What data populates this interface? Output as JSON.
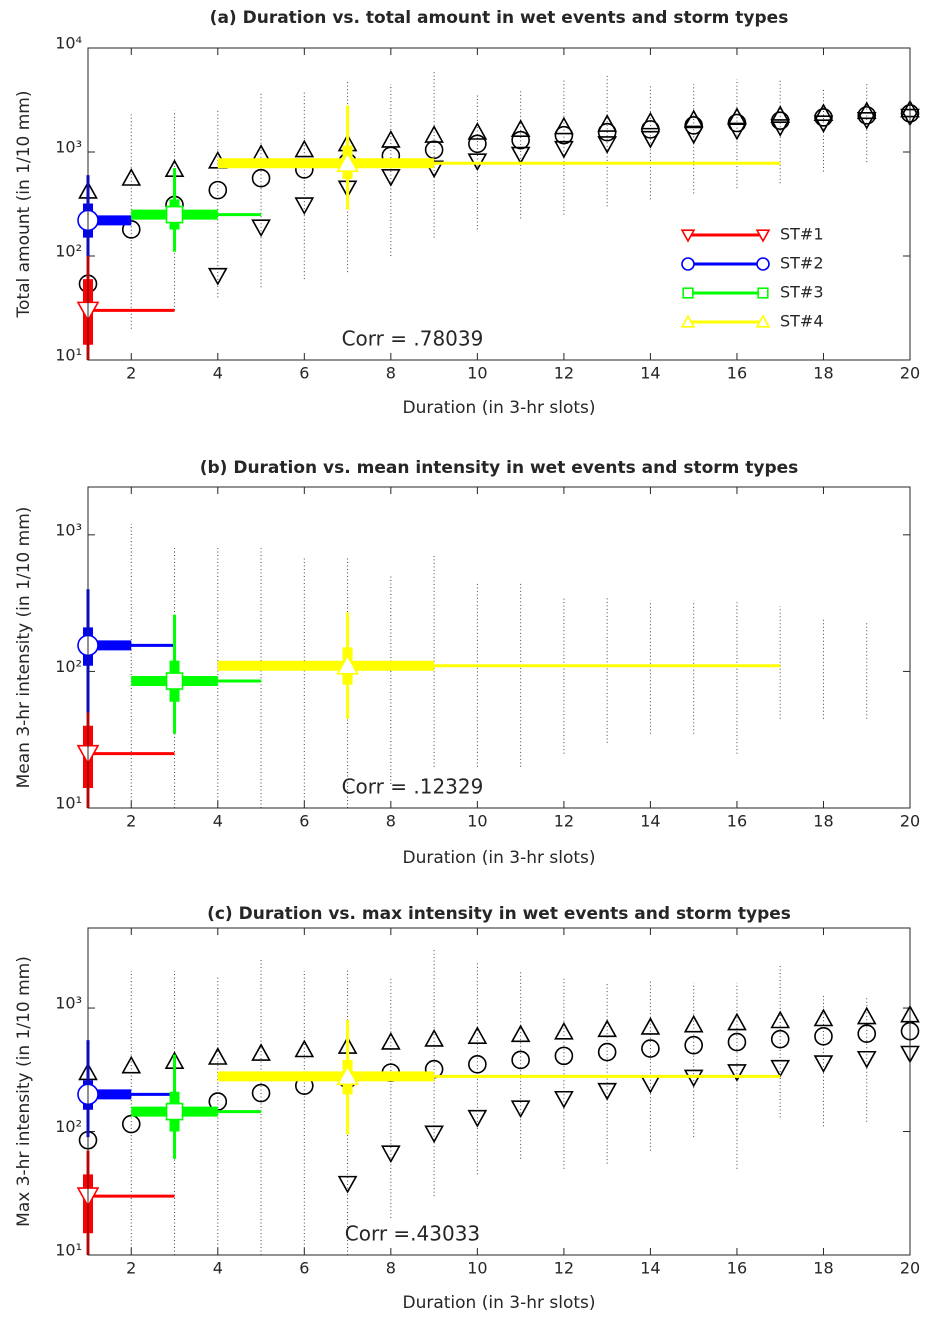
{
  "chart_data": [
    {
      "type": "scatter",
      "title": "(a) Duration vs. total amount in wet events and storm types",
      "x_label": "Duration (in 3-hr slots)",
      "y_label": "Total amount (in 1/10 mm)",
      "y_scale": "log",
      "xlim": [
        1,
        20
      ],
      "xticks": [
        2,
        4,
        6,
        8,
        10,
        12,
        14,
        16,
        18,
        20
      ],
      "ylim": [
        10,
        10000
      ],
      "yticks": [
        {
          "value": 10,
          "label": "10¹"
        },
        {
          "value": 100,
          "label": "10²"
        },
        {
          "value": 1000,
          "label": "10³"
        },
        {
          "value": 10000,
          "label": "10⁴"
        }
      ],
      "annotation": "Corr = .78039",
      "legend": "lower right",
      "x": [
        1,
        2,
        3,
        4,
        5,
        6,
        7,
        8,
        9,
        10,
        11,
        12,
        13,
        14,
        15,
        16,
        17,
        18,
        19,
        20
      ],
      "spread": {
        "lo": [
          10,
          20,
          30,
          40,
          50,
          60,
          70,
          100,
          150,
          180,
          230,
          250,
          300,
          350,
          400,
          450,
          500,
          650,
          800,
          1000
        ],
        "hi": [
          1800,
          2300,
          2500,
          2500,
          3800,
          3800,
          4800,
          4500,
          6000,
          3500,
          4000,
          5000,
          5500,
          4500,
          4500,
          5000,
          5000,
          4000,
          4500,
          3500
        ]
      },
      "marker_series": [
        {
          "marker": "^",
          "color": "#000000",
          "values": [
            420,
            560,
            680,
            820,
            950,
            1050,
            1200,
            1300,
            1450,
            1550,
            1650,
            1750,
            1850,
            1950,
            2050,
            2150,
            2250,
            2350,
            2450,
            2550
          ]
        },
        {
          "marker": "o",
          "color": "#000000",
          "values": [
            54,
            180,
            310,
            430,
            560,
            680,
            800,
            920,
            1050,
            1200,
            1300,
            1450,
            1550,
            1650,
            1800,
            1900,
            2000,
            2150,
            2250,
            2350
          ]
        },
        {
          "marker": "v",
          "color": "#000000",
          "values": [
            null,
            null,
            null,
            65,
            190,
            310,
            450,
            580,
            700,
            820,
            950,
            1080,
            1200,
            1350,
            1480,
            1620,
            1750,
            1900,
            2050,
            2200
          ]
        }
      ],
      "series": [
        {
          "name": "ST#1",
          "color": "#ff0000",
          "marker": "v",
          "x": 1,
          "y": 30,
          "xrange": [
            1,
            3
          ],
          "xiqr": [
            1,
            1
          ],
          "yrange": [
            10,
            100
          ],
          "yiqr": [
            14,
            60
          ]
        },
        {
          "name": "ST#2",
          "color": "#0000ff",
          "marker": "o",
          "x": 1,
          "y": 220,
          "xrange": [
            1,
            2
          ],
          "xiqr": [
            1,
            2
          ],
          "yrange": [
            100,
            600
          ],
          "yiqr": [
            150,
            320
          ]
        },
        {
          "name": "ST#3",
          "color": "#00ff00",
          "marker": "s",
          "x": 3,
          "y": 250,
          "xrange": [
            2,
            5
          ],
          "xiqr": [
            2,
            4
          ],
          "yrange": [
            110,
            700
          ],
          "yiqr": [
            180,
            350
          ]
        },
        {
          "name": "ST#4",
          "color": "#ffff00",
          "marker": "^",
          "x": 7,
          "y": 780,
          "xrange": [
            4,
            17
          ],
          "xiqr": [
            4,
            9
          ],
          "yrange": [
            280,
            2800
          ],
          "yiqr": [
            550,
            1150
          ]
        }
      ]
    },
    {
      "type": "scatter",
      "title": "(b) Duration vs. mean intensity in wet events and storm types",
      "x_label": "Duration (in 3-hr slots)",
      "y_label": "Mean 3-hr intensity (in 1/10 mm)",
      "y_scale": "log",
      "xlim": [
        1,
        20
      ],
      "xticks": [
        2,
        4,
        6,
        8,
        10,
        12,
        14,
        16,
        18,
        20
      ],
      "ylim": [
        10,
        2240
      ],
      "yticks": [
        {
          "value": 10,
          "label": "10¹"
        },
        {
          "value": 100,
          "label": "10²"
        },
        {
          "value": 1000,
          "label": "10³"
        }
      ],
      "annotation": "Corr = .12329",
      "x": [
        1,
        2,
        3,
        4,
        5,
        6,
        7,
        8,
        9,
        10,
        11,
        12,
        13,
        14,
        15,
        16,
        17,
        18,
        19,
        20
      ],
      "spread": {
        "lo": [
          10,
          10,
          10,
          10,
          10,
          10,
          10,
          15,
          20,
          20,
          20,
          25,
          30,
          35,
          35,
          25,
          45,
          45,
          45,
          50
        ],
        "hi": [
          2000,
          1200,
          800,
          800,
          800,
          700,
          700,
          500,
          700,
          450,
          450,
          350,
          350,
          330,
          330,
          320,
          300,
          250,
          230,
          220
        ]
      },
      "marker_series": [],
      "series": [
        {
          "name": "ST#1",
          "color": "#ff0000",
          "marker": "v",
          "x": 1,
          "y": 25,
          "xrange": [
            1,
            3
          ],
          "xiqr": [
            1,
            1
          ],
          "yrange": [
            10,
            65
          ],
          "yiqr": [
            14,
            40
          ]
        },
        {
          "name": "ST#2",
          "color": "#0000ff",
          "marker": "o",
          "x": 1,
          "y": 155,
          "xrange": [
            1,
            3
          ],
          "xiqr": [
            1,
            2
          ],
          "yrange": [
            50,
            400
          ],
          "yiqr": [
            110,
            210
          ]
        },
        {
          "name": "ST#3",
          "color": "#00ff00",
          "marker": "s",
          "x": 3,
          "y": 85,
          "xrange": [
            2,
            5
          ],
          "xiqr": [
            2,
            4
          ],
          "yrange": [
            35,
            260
          ],
          "yiqr": [
            60,
            120
          ]
        },
        {
          "name": "ST#4",
          "color": "#ffff00",
          "marker": "^",
          "x": 7,
          "y": 110,
          "xrange": [
            4,
            17
          ],
          "xiqr": [
            4,
            9
          ],
          "yrange": [
            45,
            270
          ],
          "yiqr": [
            80,
            150
          ]
        }
      ]
    },
    {
      "type": "scatter",
      "title": "(c) Duration vs. max intensity in wet events and storm types",
      "x_label": "Duration (in 3-hr slots)",
      "y_label": "Max 3-hr intensity (in 1/10 mm)",
      "y_scale": "log",
      "xlim": [
        1,
        20
      ],
      "xticks": [
        2,
        4,
        6,
        8,
        10,
        12,
        14,
        16,
        18,
        20
      ],
      "ylim": [
        10,
        4450
      ],
      "yticks": [
        {
          "value": 10,
          "label": "10¹"
        },
        {
          "value": 100,
          "label": "10²"
        },
        {
          "value": 1000,
          "label": "10³"
        }
      ],
      "annotation": "Corr =.43033",
      "x": [
        1,
        2,
        3,
        4,
        5,
        6,
        7,
        8,
        9,
        10,
        11,
        12,
        13,
        14,
        15,
        16,
        17,
        18,
        19,
        20
      ],
      "spread": {
        "lo": [
          10,
          10,
          10,
          10,
          10,
          10,
          10,
          20,
          30,
          45,
          60,
          50,
          55,
          70,
          90,
          50,
          130,
          110,
          120,
          150
        ],
        "hi": [
          2500,
          2000,
          2000,
          1800,
          2500,
          2000,
          2100,
          1800,
          3000,
          2300,
          2000,
          1800,
          1600,
          1700,
          1600,
          1600,
          2200,
          1300,
          1200,
          1100
        ]
      },
      "marker_series": [
        {
          "marker": "^",
          "color": "#000000",
          "values": [
            300,
            340,
            370,
            400,
            430,
            460,
            490,
            530,
            560,
            590,
            610,
            640,
            670,
            700,
            730,
            760,
            790,
            820,
            850,
            880
          ]
        },
        {
          "marker": "o",
          "color": "#000000",
          "values": [
            85,
            115,
            145,
            175,
            205,
            235,
            265,
            300,
            320,
            350,
            380,
            410,
            440,
            470,
            500,
            530,
            560,
            590,
            620,
            650
          ]
        },
        {
          "marker": "v",
          "color": "#000000",
          "values": [
            null,
            null,
            null,
            null,
            null,
            null,
            38,
            67,
            97,
            130,
            155,
            185,
            215,
            245,
            275,
            305,
            330,
            360,
            390,
            430
          ]
        }
      ],
      "series": [
        {
          "name": "ST#1",
          "color": "#ff0000",
          "marker": "v",
          "x": 1,
          "y": 30,
          "xrange": [
            1,
            3
          ],
          "xiqr": [
            1,
            1
          ],
          "yrange": [
            10,
            70
          ],
          "yiqr": [
            15,
            45
          ]
        },
        {
          "name": "ST#2",
          "color": "#0000ff",
          "marker": "o",
          "x": 1,
          "y": 200,
          "xrange": [
            1,
            3
          ],
          "xiqr": [
            1,
            2
          ],
          "yrange": [
            90,
            550
          ],
          "yiqr": [
            150,
            260
          ]
        },
        {
          "name": "ST#3",
          "color": "#00ff00",
          "marker": "s",
          "x": 3,
          "y": 145,
          "xrange": [
            2,
            5
          ],
          "xiqr": [
            2,
            4
          ],
          "yrange": [
            60,
            420
          ],
          "yiqr": [
            100,
            210
          ]
        },
        {
          "name": "ST#4",
          "color": "#ffff00",
          "marker": "^",
          "x": 7,
          "y": 280,
          "xrange": [
            4,
            17
          ],
          "xiqr": [
            4,
            9
          ],
          "yrange": [
            95,
            800
          ],
          "yiqr": [
            200,
            380
          ]
        }
      ]
    }
  ]
}
